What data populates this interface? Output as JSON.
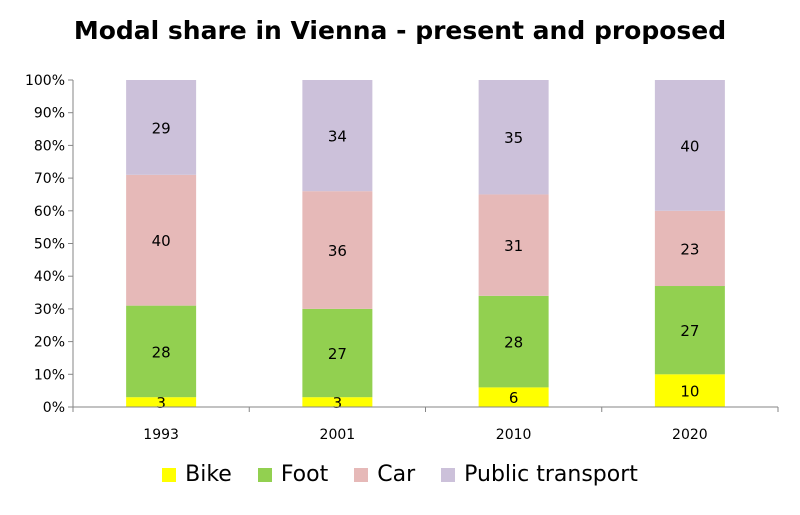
{
  "chart_data": {
    "type": "bar",
    "stacked": true,
    "title": "Modal share in Vienna - present and proposed",
    "xlabel": "",
    "ylabel": "",
    "categories": [
      "1993",
      "2001",
      "2010",
      "2020"
    ],
    "ylim": [
      0,
      100
    ],
    "y_tick_labels": [
      "0%",
      "10%",
      "20%",
      "30%",
      "40%",
      "50%",
      "60%",
      "70%",
      "80%",
      "90%",
      "100%"
    ],
    "grid": false,
    "legend_position": "bottom",
    "series": [
      {
        "name": "Bike",
        "color": "#FFFF00",
        "values": [
          3,
          3,
          6,
          10
        ]
      },
      {
        "name": "Foot",
        "color": "#92D050",
        "values": [
          28,
          27,
          28,
          27
        ]
      },
      {
        "name": "Car",
        "color": "#E6B9B8",
        "values": [
          40,
          36,
          31,
          23
        ]
      },
      {
        "name": "Public transport",
        "color": "#CCC1DA",
        "values": [
          29,
          34,
          35,
          40
        ]
      }
    ],
    "data_labels": [
      [
        "3",
        "3",
        "6",
        "10"
      ],
      [
        "28",
        "27",
        "28",
        "27"
      ],
      [
        "40",
        "36",
        "31",
        "23"
      ],
      [
        "29",
        "34",
        "35",
        "40"
      ]
    ]
  }
}
